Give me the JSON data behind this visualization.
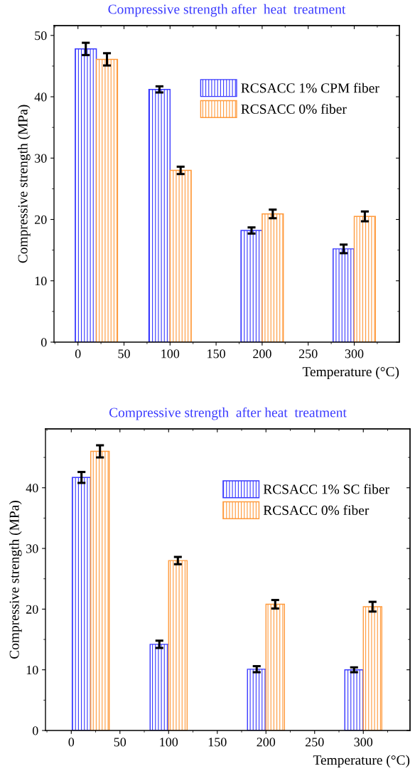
{
  "chart_data": [
    {
      "type": "bar",
      "title": "Compressive strength after  heat  treatment",
      "xlabel": "Temperature (°C)",
      "ylabel": "Compressive strength (MPa)",
      "x": [
        20,
        100,
        200,
        300
      ],
      "series": [
        {
          "name": "RCSACC 1% CPM fiber",
          "color": "#3a3aff",
          "values": [
            47.8,
            41.2,
            18.2,
            15.2
          ],
          "errors": [
            1.0,
            0.5,
            0.5,
            0.7
          ]
        },
        {
          "name": "RCSACC 0% fiber",
          "color": "#ff9a3c",
          "values": [
            46.1,
            28.0,
            20.9,
            20.5
          ],
          "errors": [
            1.0,
            0.6,
            0.7,
            0.8
          ]
        }
      ],
      "xlim": [
        -26,
        349
      ],
      "xticks": [
        0,
        50,
        100,
        150,
        200,
        250,
        300
      ],
      "ylim": [
        0,
        51.6
      ],
      "yticks": [
        0,
        10,
        20,
        30,
        40,
        50
      ],
      "legend": "top right",
      "grid": false
    },
    {
      "type": "bar",
      "title": "Compressive strength  after heat  treatment",
      "xlabel": "Temperature (°C)",
      "ylabel": "Compressive strength (MPa)",
      "x": [
        20,
        100,
        200,
        300
      ],
      "series": [
        {
          "name": "RCSACC 1% SC fiber",
          "color": "#3a3aff",
          "values": [
            41.7,
            14.2,
            10.1,
            10.0
          ],
          "errors": [
            0.9,
            0.6,
            0.5,
            0.4
          ]
        },
        {
          "name": "RCSACC 0% fiber",
          "color": "#ff9a3c",
          "values": [
            46.0,
            28.0,
            20.8,
            20.4
          ],
          "errors": [
            1.0,
            0.6,
            0.7,
            0.8
          ]
        }
      ],
      "xlim": [
        -26.5,
        348
      ],
      "xticks": [
        0,
        50,
        100,
        150,
        200,
        250,
        300
      ],
      "ylim": [
        0,
        49.7
      ],
      "yticks": [
        0,
        10,
        20,
        30,
        40
      ],
      "legend": "top right",
      "grid": false
    }
  ]
}
